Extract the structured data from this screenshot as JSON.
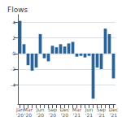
{
  "chart_data": {
    "type": "bar",
    "title": "Flows",
    "categories": [
      "Jan\n'20",
      null,
      "Mar\n'20",
      null,
      null,
      "Jun\n'20",
      null,
      null,
      "Sep\n'20",
      null,
      null,
      "Dec\n'20",
      null,
      null,
      "Mar\n'21",
      null,
      null,
      "Jun\n'21",
      null,
      null,
      "Sep\n'21",
      null,
      null,
      "Dec\n'21"
    ],
    "values": [
      4.2,
      1.2,
      -1.5,
      -2.2,
      -1.8,
      2.5,
      -0.6,
      -1.0,
      1.0,
      0.8,
      1.2,
      0.9,
      1.3,
      1.5,
      -0.4,
      -0.3,
      -0.5,
      -0.3,
      -5.8,
      -1.8,
      -2.0,
      3.2,
      2.5,
      -3.2
    ],
    "color": "#2a6496",
    "ylim": [
      -6.5,
      5.0
    ],
    "yticks": [
      -4,
      -2,
      0,
      2,
      4
    ],
    "grid": true
  }
}
